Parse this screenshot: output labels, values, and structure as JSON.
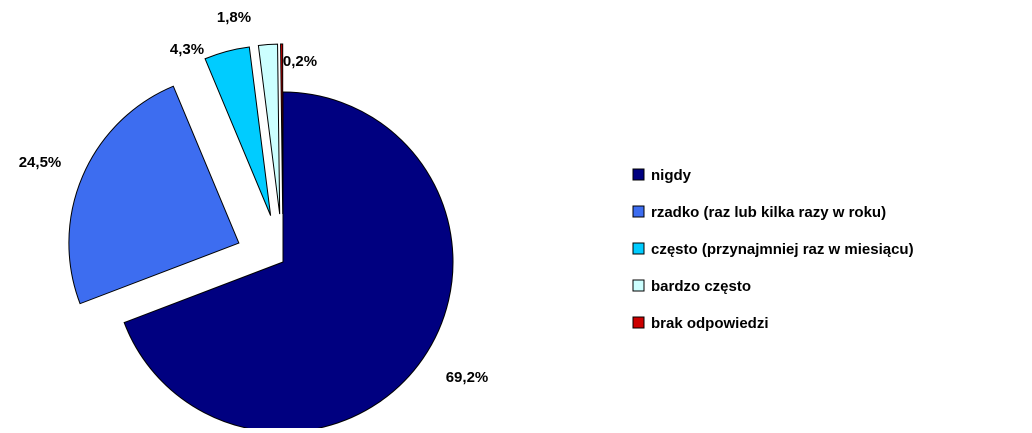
{
  "chart_data": {
    "type": "pie",
    "categories": [
      "nigdy",
      "rzadko (raz lub kilka razy w roku)",
      "często (przynajmniej raz w miesiącu)",
      "bardzo często",
      "brak odpowiedzi"
    ],
    "values": [
      69.2,
      24.5,
      4.3,
      1.8,
      0.2
    ],
    "value_labels": [
      "69,2%",
      "24,5%",
      "4,3%",
      "1,8%",
      "0,2%"
    ],
    "colors": [
      "#000080",
      "#3d6df0",
      "#00ccff",
      "#ccffff",
      "#cc0000"
    ],
    "legend": "right"
  }
}
